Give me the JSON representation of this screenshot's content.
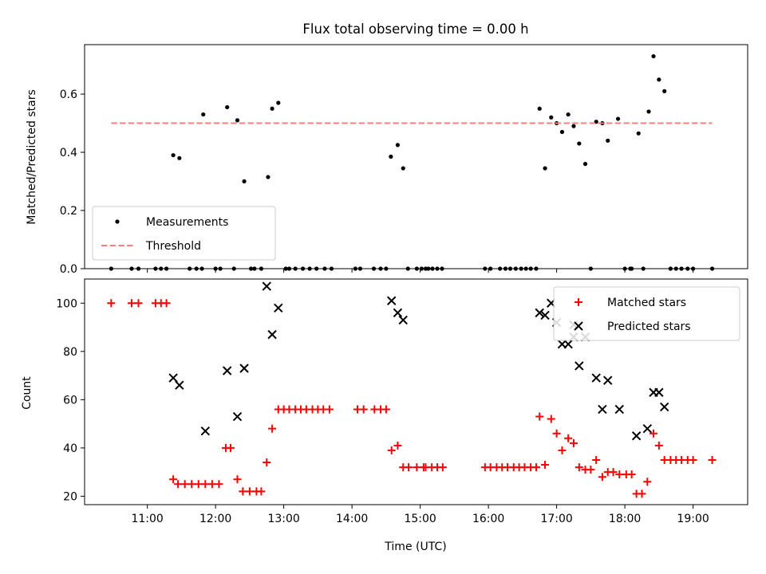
{
  "chart_data": [
    {
      "type": "scatter",
      "title": "Flux total observing time = 0.00 h",
      "xlabel": "",
      "ylabel": "Matched/Predicted stars",
      "xlim": [
        10.08,
        19.8
      ],
      "ylim": [
        0,
        0.77
      ],
      "xticks": [
        11,
        12,
        13,
        14,
        15,
        16,
        17,
        18,
        19
      ],
      "xtick_labels": [],
      "yticks": [
        0,
        0.2,
        0.4,
        0.6
      ],
      "ytick_labels": [
        "0.0",
        "0.2",
        "0.4",
        "0.6"
      ],
      "grid": false,
      "legend": {
        "position": "lower-left",
        "entries": [
          "Measurements",
          "Threshold"
        ]
      },
      "series": [
        {
          "name": "Measurements",
          "marker": "dot",
          "color": "#000000",
          "points": [
            [
              10.47,
              0
            ],
            [
              10.77,
              0
            ],
            [
              10.87,
              0
            ],
            [
              11.12,
              0
            ],
            [
              11.2,
              0
            ],
            [
              11.28,
              0
            ],
            [
              11.38,
              0.39
            ],
            [
              11.47,
              0.38
            ],
            [
              11.62,
              0
            ],
            [
              11.72,
              0
            ],
            [
              11.82,
              0.53
            ],
            [
              11.8,
              0
            ],
            [
              12.0,
              0
            ],
            [
              12.07,
              0
            ],
            [
              12.17,
              0.555
            ],
            [
              12.27,
              0
            ],
            [
              12.32,
              0.51
            ],
            [
              12.42,
              0.3
            ],
            [
              12.52,
              0
            ],
            [
              12.57,
              0
            ],
            [
              12.67,
              0
            ],
            [
              12.77,
              0.315
            ],
            [
              12.83,
              0.55
            ],
            [
              12.92,
              0.57
            ],
            [
              13.03,
              0
            ],
            [
              13.08,
              0
            ],
            [
              13.17,
              0
            ],
            [
              13.28,
              0
            ],
            [
              13.38,
              0
            ],
            [
              13.48,
              0
            ],
            [
              13.6,
              0
            ],
            [
              13.7,
              0
            ],
            [
              14.05,
              0
            ],
            [
              14.12,
              0
            ],
            [
              14.32,
              0
            ],
            [
              14.42,
              0
            ],
            [
              14.5,
              0
            ],
            [
              14.57,
              0.385
            ],
            [
              14.67,
              0.425
            ],
            [
              14.75,
              0.345
            ],
            [
              14.82,
              0
            ],
            [
              14.95,
              0
            ],
            [
              15.02,
              0
            ],
            [
              15.08,
              0
            ],
            [
              15.12,
              0
            ],
            [
              15.18,
              0
            ],
            [
              15.25,
              0
            ],
            [
              15.32,
              0
            ],
            [
              15.95,
              0
            ],
            [
              16.03,
              0
            ],
            [
              16.17,
              0
            ],
            [
              16.25,
              0
            ],
            [
              16.32,
              0
            ],
            [
              16.4,
              0
            ],
            [
              16.48,
              0
            ],
            [
              16.55,
              0
            ],
            [
              16.62,
              0
            ],
            [
              16.7,
              0
            ],
            [
              16.75,
              0.55
            ],
            [
              16.83,
              0.345
            ],
            [
              16.92,
              0.52
            ],
            [
              17.0,
              0.5
            ],
            [
              17.08,
              0.47
            ],
            [
              17.17,
              0.53
            ],
            [
              17.25,
              0.49
            ],
            [
              17.33,
              0.43
            ],
            [
              17.42,
              0.36
            ],
            [
              17.5,
              0
            ],
            [
              17.58,
              0.505
            ],
            [
              17.67,
              0.5
            ],
            [
              17.75,
              0.44
            ],
            [
              17.9,
              0.515
            ],
            [
              18.0,
              0
            ],
            [
              18.08,
              0
            ],
            [
              18.1,
              0
            ],
            [
              18.2,
              0.465
            ],
            [
              18.27,
              0
            ],
            [
              18.35,
              0.54
            ],
            [
              18.42,
              0.73
            ],
            [
              18.5,
              0.65
            ],
            [
              18.58,
              0.61
            ],
            [
              18.67,
              0
            ],
            [
              18.75,
              0
            ],
            [
              18.83,
              0
            ],
            [
              18.92,
              0
            ],
            [
              19.0,
              0
            ],
            [
              19.28,
              0
            ]
          ]
        },
        {
          "name": "Threshold",
          "line": "dashed",
          "color": "#ff7f7f",
          "x": [
            10.47,
            19.28
          ],
          "y": [
            0.5,
            0.5
          ]
        }
      ]
    },
    {
      "type": "scatter",
      "title": "",
      "xlabel": "Time (UTC)",
      "ylabel": "Count",
      "xlim": [
        10.08,
        19.8
      ],
      "ylim": [
        16.5,
        110
      ],
      "xticks": [
        11,
        12,
        13,
        14,
        15,
        16,
        17,
        18,
        19
      ],
      "xtick_labels": [
        "11:00",
        "12:00",
        "13:00",
        "14:00",
        "15:00",
        "16:00",
        "17:00",
        "18:00",
        "19:00"
      ],
      "yticks": [
        20,
        40,
        60,
        80,
        100
      ],
      "ytick_labels": [
        "20",
        "40",
        "60",
        "80",
        "100"
      ],
      "grid": false,
      "legend": {
        "position": "top-right",
        "entries": [
          "Matched stars",
          "Predicted stars"
        ]
      },
      "series": [
        {
          "name": "Matched stars",
          "marker": "plus",
          "color": "#ff0000",
          "points": [
            [
              10.47,
              100
            ],
            [
              10.77,
              100
            ],
            [
              10.87,
              100
            ],
            [
              11.12,
              100
            ],
            [
              11.2,
              100
            ],
            [
              11.28,
              100
            ],
            [
              11.38,
              27
            ],
            [
              11.45,
              25
            ],
            [
              11.55,
              25
            ],
            [
              11.65,
              25
            ],
            [
              11.75,
              25
            ],
            [
              11.85,
              25
            ],
            [
              11.95,
              25
            ],
            [
              12.05,
              25
            ],
            [
              12.15,
              40
            ],
            [
              12.22,
              40
            ],
            [
              12.32,
              27
            ],
            [
              12.4,
              22
            ],
            [
              12.5,
              22
            ],
            [
              12.6,
              22
            ],
            [
              12.67,
              22
            ],
            [
              12.75,
              34
            ],
            [
              12.83,
              48
            ],
            [
              12.92,
              56
            ],
            [
              13.0,
              56
            ],
            [
              13.08,
              56
            ],
            [
              13.17,
              56
            ],
            [
              13.25,
              56
            ],
            [
              13.33,
              56
            ],
            [
              13.42,
              56
            ],
            [
              13.5,
              56
            ],
            [
              13.58,
              56
            ],
            [
              13.67,
              56
            ],
            [
              14.08,
              56
            ],
            [
              14.17,
              56
            ],
            [
              14.33,
              56
            ],
            [
              14.42,
              56
            ],
            [
              14.5,
              56
            ],
            [
              14.58,
              39
            ],
            [
              14.67,
              41
            ],
            [
              14.75,
              32
            ],
            [
              14.83,
              32
            ],
            [
              14.95,
              32
            ],
            [
              15.05,
              32
            ],
            [
              15.08,
              32
            ],
            [
              15.17,
              32
            ],
            [
              15.25,
              32
            ],
            [
              15.33,
              32
            ],
            [
              15.95,
              32
            ],
            [
              16.03,
              32
            ],
            [
              16.12,
              32
            ],
            [
              16.2,
              32
            ],
            [
              16.28,
              32
            ],
            [
              16.37,
              32
            ],
            [
              16.45,
              32
            ],
            [
              16.53,
              32
            ],
            [
              16.62,
              32
            ],
            [
              16.7,
              32
            ],
            [
              16.75,
              53
            ],
            [
              16.83,
              33
            ],
            [
              16.92,
              52
            ],
            [
              17.0,
              46
            ],
            [
              17.08,
              39
            ],
            [
              17.17,
              44
            ],
            [
              17.25,
              42
            ],
            [
              17.33,
              32
            ],
            [
              17.42,
              31
            ],
            [
              17.5,
              31
            ],
            [
              17.58,
              35
            ],
            [
              17.67,
              28
            ],
            [
              17.75,
              30
            ],
            [
              17.83,
              30
            ],
            [
              17.92,
              29
            ],
            [
              18.02,
              29
            ],
            [
              18.1,
              29
            ],
            [
              18.17,
              21
            ],
            [
              18.25,
              21
            ],
            [
              18.33,
              26
            ],
            [
              18.42,
              46
            ],
            [
              18.5,
              41
            ],
            [
              18.58,
              35
            ],
            [
              18.67,
              35
            ],
            [
              18.75,
              35
            ],
            [
              18.83,
              35
            ],
            [
              18.92,
              35
            ],
            [
              19.0,
              35
            ],
            [
              19.28,
              35
            ]
          ]
        },
        {
          "name": "Predicted stars",
          "marker": "x",
          "color": "#000000",
          "points": [
            [
              11.38,
              69
            ],
            [
              11.47,
              66
            ],
            [
              11.85,
              47
            ],
            [
              12.17,
              72
            ],
            [
              12.32,
              53
            ],
            [
              12.42,
              73
            ],
            [
              12.75,
              107
            ],
            [
              12.83,
              87
            ],
            [
              12.92,
              98
            ],
            [
              14.58,
              101
            ],
            [
              14.67,
              96
            ],
            [
              14.75,
              93
            ],
            [
              16.75,
              96
            ],
            [
              16.83,
              95
            ],
            [
              16.92,
              100
            ],
            [
              17.0,
              92
            ],
            [
              17.08,
              83
            ],
            [
              17.17,
              83
            ],
            [
              17.25,
              91
            ],
            [
              17.33,
              74
            ],
            [
              17.25,
              86
            ],
            [
              17.42,
              86
            ],
            [
              17.58,
              69
            ],
            [
              17.67,
              56
            ],
            [
              17.75,
              68
            ],
            [
              17.92,
              56
            ],
            [
              18.17,
              45
            ],
            [
              18.33,
              48
            ],
            [
              18.42,
              63
            ],
            [
              18.5,
              63
            ],
            [
              18.58,
              57
            ]
          ]
        }
      ]
    }
  ]
}
